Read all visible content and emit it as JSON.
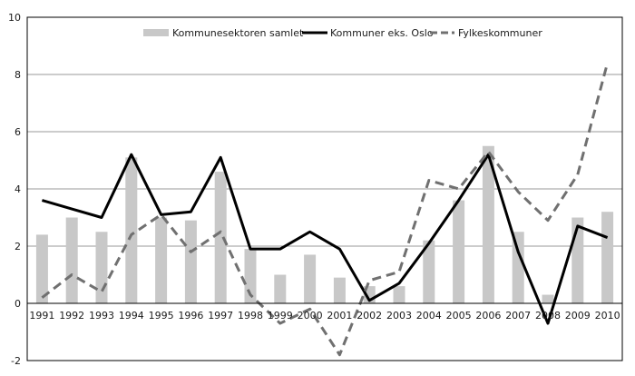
{
  "chart_data": {
    "type": "bar",
    "title": "",
    "xlabel": "",
    "ylabel": "",
    "ylim": [
      -2,
      10
    ],
    "yticks": [
      -2,
      0,
      2,
      4,
      6,
      8,
      10
    ],
    "grid": true,
    "legend_position": "top",
    "categories": [
      "1991",
      "1992",
      "1993",
      "1994",
      "1995",
      "1996",
      "1997",
      "1998",
      "1999",
      "2000",
      "2001",
      "2002",
      "2003",
      "2004",
      "2005",
      "2006",
      "2007",
      "2008",
      "2009",
      "2010"
    ],
    "series": [
      {
        "name": "Kommunesektoren samlet",
        "kind": "bar",
        "color": "#c8c8c8",
        "values": [
          2.4,
          3.0,
          2.5,
          5.1,
          3.0,
          2.9,
          4.6,
          1.9,
          1.0,
          1.7,
          0.9,
          0.6,
          0.6,
          2.2,
          3.6,
          5.5,
          2.5,
          0.3,
          3.0,
          3.2
        ]
      },
      {
        "name": "Kommuner eks. Oslo",
        "kind": "line",
        "style": "solid",
        "color": "#000000",
        "values": [
          3.6,
          3.3,
          3.0,
          5.2,
          3.1,
          3.2,
          5.1,
          1.9,
          1.9,
          2.5,
          1.9,
          0.1,
          0.7,
          2.1,
          3.6,
          5.2,
          1.8,
          -0.7,
          2.7,
          2.3
        ]
      },
      {
        "name": "Fylkeskommuner",
        "kind": "line",
        "style": "dashed",
        "color": "#707070",
        "values": [
          0.2,
          1.0,
          0.4,
          2.4,
          3.1,
          1.8,
          2.5,
          0.3,
          -0.7,
          -0.2,
          -1.8,
          0.8,
          1.1,
          4.3,
          4.0,
          5.3,
          3.9,
          2.9,
          4.5,
          8.4
        ]
      }
    ]
  }
}
